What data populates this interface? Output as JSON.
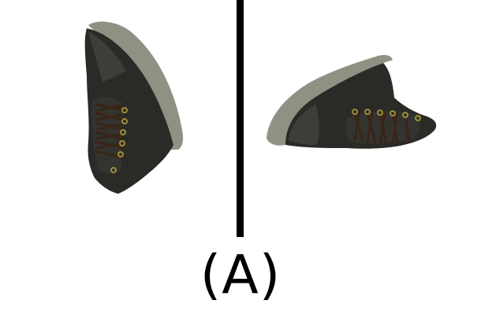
{
  "caption": {
    "label": "(A)"
  },
  "left_view": {
    "subject": "shoe-rotated-view",
    "icon": "high-top-sneaker"
  },
  "right_view": {
    "subject": "shoe-rotated-view",
    "icon": "high-top-sneaker"
  },
  "colors": {
    "background": "#ffffff",
    "divider": "#000000",
    "shoe_leather": "#2a2b26",
    "shoe_leather_highlight": "#3d3e38",
    "sole": "#8f9283",
    "laces": "#3a2418",
    "eyelets": "#9c8f3a"
  }
}
